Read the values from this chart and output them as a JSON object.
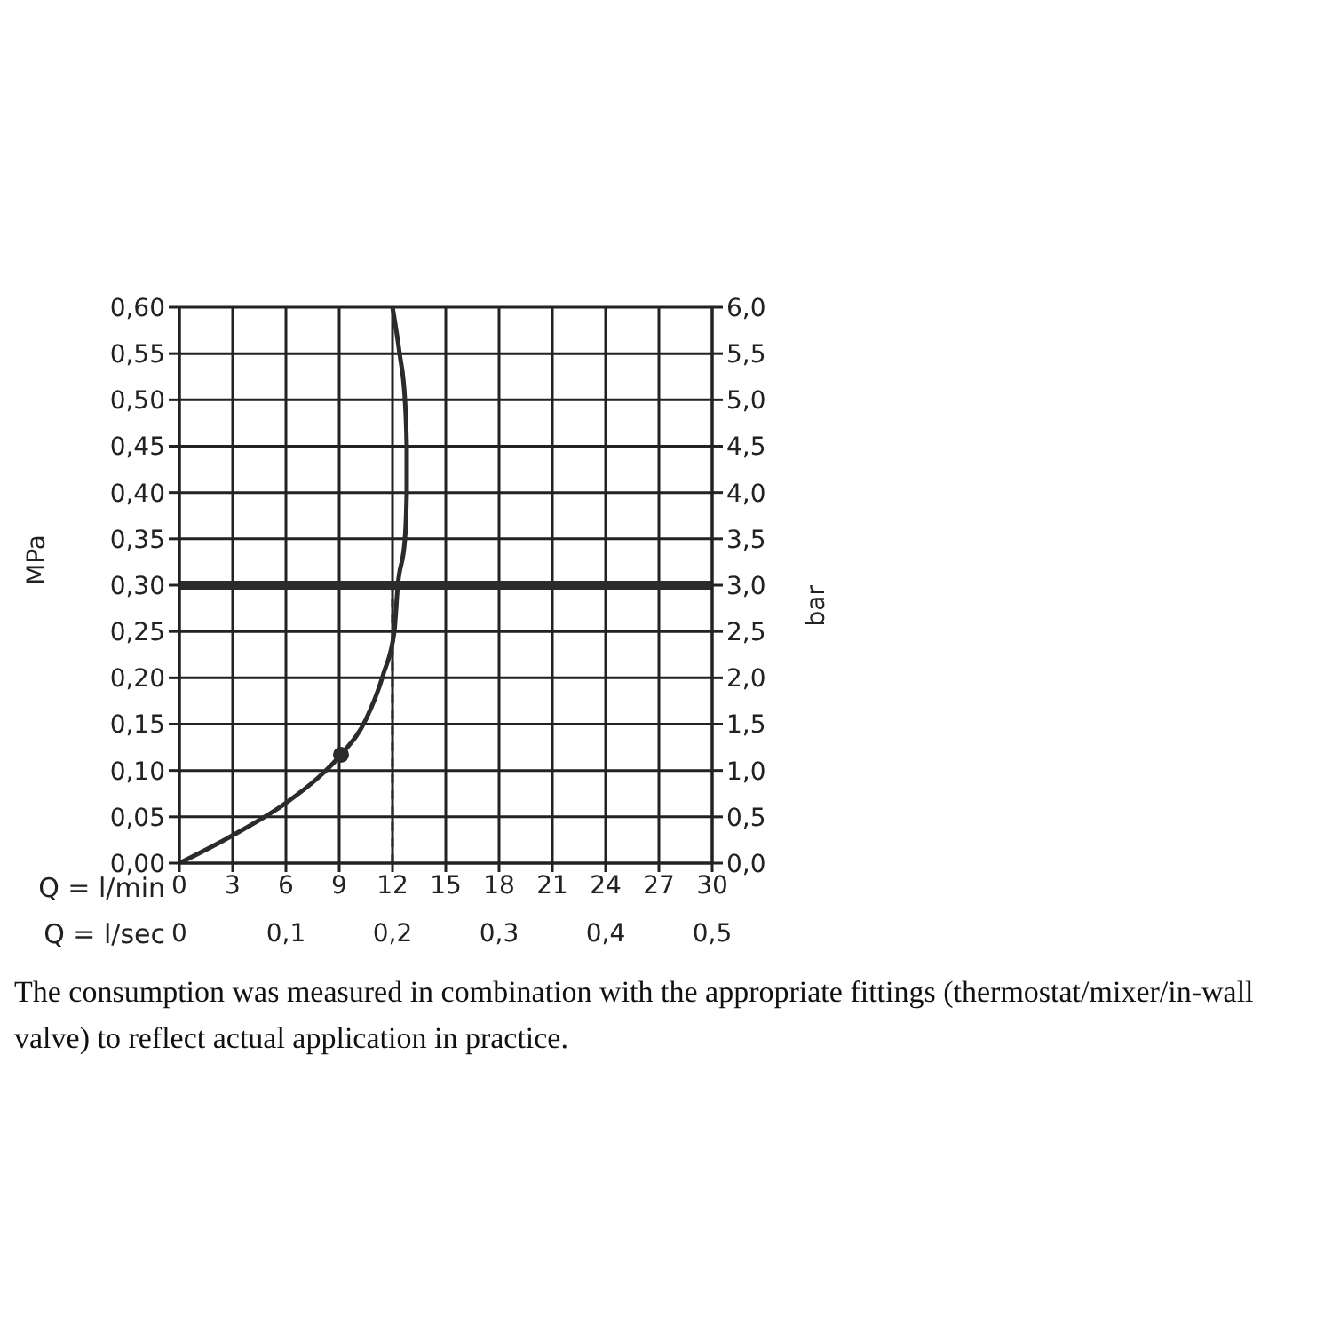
{
  "chart_data": {
    "type": "line",
    "xlabel": "Q = l/min",
    "x2label": "Q = l/sec",
    "ylabel": "MPa",
    "y2label": "bar",
    "xlim": [
      0,
      30
    ],
    "xticks": [
      0,
      3,
      6,
      9,
      12,
      15,
      18,
      21,
      24,
      27,
      30
    ],
    "x2lim": [
      0,
      0.5
    ],
    "x2ticks": [
      0,
      {
        "value": 0.1,
        "label": "0,1"
      },
      {
        "value": 0.2,
        "label": "0,2"
      },
      {
        "value": 0.3,
        "label": "0,3"
      },
      {
        "value": 0.4,
        "label": "0,4"
      },
      {
        "value": 0.5,
        "label": "0,5"
      }
    ],
    "ylim": [
      0,
      0.6
    ],
    "yticks": [
      {
        "value": 0,
        "label": "0,00"
      },
      {
        "value": 0.05,
        "label": "0,05"
      },
      {
        "value": 0.1,
        "label": "0,10"
      },
      {
        "value": 0.15,
        "label": "0,15"
      },
      {
        "value": 0.2,
        "label": "0,20"
      },
      {
        "value": 0.25,
        "label": "0,25"
      },
      {
        "value": 0.3,
        "label": "0,30"
      },
      {
        "value": 0.35,
        "label": "0,35"
      },
      {
        "value": 0.4,
        "label": "0,40"
      },
      {
        "value": 0.45,
        "label": "0,45"
      },
      {
        "value": 0.5,
        "label": "0,50"
      },
      {
        "value": 0.55,
        "label": "0,55"
      },
      {
        "value": 0.6,
        "label": "0,60"
      }
    ],
    "y2lim": [
      0,
      6
    ],
    "y2ticks": [
      {
        "value": 0,
        "label": "0,0"
      },
      {
        "value": 0.5,
        "label": "0,5"
      },
      {
        "value": 1,
        "label": "1,0"
      },
      {
        "value": 1.5,
        "label": "1,5"
      },
      {
        "value": 2,
        "label": "2,0"
      },
      {
        "value": 2.5,
        "label": "2,5"
      },
      {
        "value": 3,
        "label": "3,0"
      },
      {
        "value": 3.5,
        "label": "3,5"
      },
      {
        "value": 4,
        "label": "4,0"
      },
      {
        "value": 4.5,
        "label": "4,5"
      },
      {
        "value": 5,
        "label": "5,0"
      },
      {
        "value": 5.5,
        "label": "5,5"
      },
      {
        "value": 6,
        "label": "6,0"
      }
    ],
    "grid": true,
    "series": [
      {
        "color": "#2b2b2b",
        "marker": "none",
        "x": [
          0,
          3,
          6,
          7.8,
          9.1,
          10.5,
          11.5,
          12.1,
          12.3,
          12.7,
          12.8,
          12.8,
          12.7,
          12.4,
          12
        ],
        "values": [
          0,
          0.03,
          0.065,
          0.092,
          0.117,
          0.155,
          0.205,
          0.25,
          0.3,
          0.35,
          0.4,
          0.45,
          0.5,
          0.55,
          0.6
        ]
      },
      {
        "type": "scatter",
        "color": "#2b2b2b",
        "marker": "circle",
        "x": [
          9.1
        ],
        "values": [
          0.117
        ]
      },
      {
        "color": "#2b2b2b",
        "marker": "none",
        "line_style": "dashed",
        "x": [
          12,
          12
        ],
        "values": [
          0,
          0.3
        ]
      }
    ],
    "ref_lines": [
      {
        "axis": "y",
        "value": 0.3,
        "color": "#2b2b2b"
      }
    ],
    "annotations": [
      "The consumption was measured in combination with the appropriate fittings (thermostat/mixer/in-wall valve) to reflect actual application in practice."
    ]
  }
}
